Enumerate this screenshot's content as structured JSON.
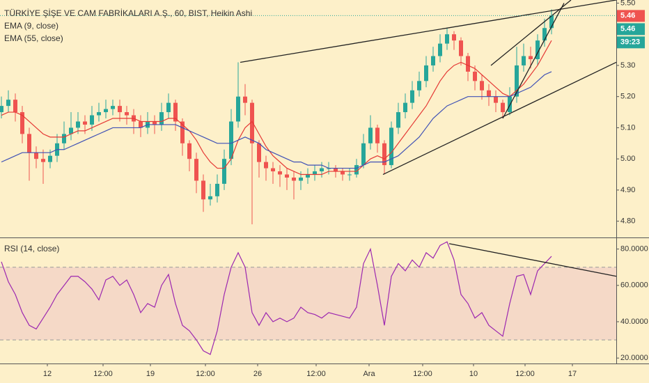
{
  "chart_data": [
    {
      "type": "candlestick",
      "title": "TÜRKİYE ŞİŞE VE CAM FABRİKALARI A.Ş., 60, BIST, Heikin Ashi",
      "up_color": "#26a69a",
      "down_color": "#ef5350",
      "open": [
        5.15,
        5.17,
        5.19,
        5.15,
        5.08,
        5.02,
        5.0,
        4.99,
        5.01,
        5.05,
        5.08,
        5.1,
        5.12,
        5.11,
        5.14,
        5.15,
        5.16,
        5.17,
        5.15,
        5.14,
        5.12,
        5.1,
        5.12,
        5.11,
        5.15,
        5.18,
        5.12,
        5.05,
        5.0,
        4.93,
        4.87,
        4.88,
        4.92,
        5.0,
        5.12,
        5.2,
        5.18,
        5.05,
        4.99,
        4.97,
        4.96,
        4.95,
        4.94,
        4.93,
        4.94,
        4.95,
        4.96,
        4.97,
        4.97,
        4.96,
        4.95,
        4.95,
        4.98,
        5.05,
        5.1,
        5.05,
        4.98,
        5.1,
        5.15,
        5.18,
        5.22,
        5.25,
        5.3,
        5.33,
        5.37,
        5.4,
        5.38,
        5.33,
        5.28,
        5.25,
        5.22,
        5.2,
        5.18,
        5.15,
        5.2,
        5.3,
        5.33,
        5.32,
        5.38,
        5.42
      ],
      "high": [
        5.2,
        5.22,
        5.21,
        5.17,
        5.1,
        5.04,
        5.03,
        5.03,
        5.08,
        5.12,
        5.15,
        5.15,
        5.14,
        5.17,
        5.18,
        5.19,
        5.19,
        5.19,
        5.17,
        5.16,
        5.14,
        5.15,
        5.14,
        5.18,
        5.21,
        5.19,
        5.13,
        5.06,
        5.02,
        4.95,
        4.92,
        4.95,
        5.03,
        5.16,
        5.31,
        5.24,
        5.19,
        5.06,
        5.01,
        4.99,
        4.98,
        4.97,
        4.96,
        4.96,
        4.97,
        4.98,
        4.99,
        4.99,
        4.98,
        4.97,
        4.97,
        5.0,
        5.08,
        5.14,
        5.11,
        5.06,
        5.12,
        5.18,
        5.21,
        5.25,
        5.28,
        5.33,
        5.36,
        5.4,
        5.42,
        5.41,
        5.39,
        5.34,
        5.3,
        5.27,
        5.24,
        5.22,
        5.19,
        5.23,
        5.36,
        5.37,
        5.36,
        5.4,
        5.45,
        5.48
      ],
      "low": [
        5.13,
        5.15,
        5.12,
        5.05,
        4.93,
        4.97,
        4.92,
        4.97,
        4.99,
        5.03,
        5.06,
        5.08,
        5.08,
        5.09,
        5.12,
        5.13,
        5.14,
        5.12,
        5.11,
        5.08,
        5.07,
        5.08,
        5.08,
        5.09,
        5.13,
        5.09,
        5.01,
        4.96,
        4.89,
        4.83,
        4.85,
        4.86,
        4.9,
        4.98,
        5.1,
        5.14,
        4.79,
        4.94,
        4.93,
        4.92,
        4.91,
        4.9,
        4.87,
        4.9,
        4.92,
        4.93,
        4.94,
        4.95,
        4.94,
        4.93,
        4.93,
        4.94,
        4.97,
        5.03,
        5.02,
        4.95,
        4.97,
        5.08,
        5.13,
        5.16,
        5.2,
        5.23,
        5.28,
        5.31,
        5.35,
        5.35,
        5.3,
        5.25,
        5.22,
        5.19,
        5.17,
        5.15,
        5.13,
        5.14,
        5.18,
        5.28,
        5.29,
        5.3,
        5.36,
        5.4
      ],
      "close": [
        5.17,
        5.19,
        5.15,
        5.08,
        5.02,
        5.0,
        4.99,
        5.01,
        5.05,
        5.08,
        5.1,
        5.12,
        5.11,
        5.14,
        5.15,
        5.16,
        5.17,
        5.15,
        5.14,
        5.12,
        5.1,
        5.12,
        5.11,
        5.15,
        5.18,
        5.12,
        5.05,
        5.0,
        4.93,
        4.87,
        4.88,
        4.92,
        5.0,
        5.12,
        5.2,
        5.18,
        5.05,
        4.99,
        4.97,
        4.96,
        4.95,
        4.94,
        4.93,
        4.94,
        4.95,
        4.96,
        4.97,
        4.97,
        4.96,
        4.95,
        4.95,
        4.98,
        5.05,
        5.1,
        5.05,
        4.98,
        5.1,
        5.15,
        5.18,
        5.22,
        5.25,
        5.3,
        5.33,
        5.37,
        5.4,
        5.38,
        5.33,
        5.28,
        5.25,
        5.22,
        5.2,
        5.18,
        5.15,
        5.2,
        5.3,
        5.33,
        5.32,
        5.38,
        5.42,
        5.46
      ],
      "series": [
        {
          "name": "EMA (9, close)",
          "color": "#e53935",
          "values": [
            5.14,
            5.15,
            5.15,
            5.14,
            5.12,
            5.1,
            5.08,
            5.07,
            5.07,
            5.07,
            5.08,
            5.09,
            5.09,
            5.1,
            5.11,
            5.12,
            5.13,
            5.13,
            5.13,
            5.13,
            5.12,
            5.12,
            5.12,
            5.12,
            5.13,
            5.13,
            5.11,
            5.09,
            5.06,
            5.02,
            4.99,
            4.97,
            4.97,
            5.0,
            5.06,
            5.1,
            5.12,
            5.08,
            5.04,
            5.01,
            4.99,
            4.97,
            4.96,
            4.95,
            4.95,
            4.95,
            4.95,
            4.96,
            4.96,
            4.96,
            4.96,
            4.96,
            4.98,
            5.0,
            5.01,
            5.0,
            5.02,
            5.05,
            5.08,
            5.11,
            5.14,
            5.17,
            5.21,
            5.25,
            5.28,
            5.3,
            5.31,
            5.3,
            5.29,
            5.27,
            5.25,
            5.23,
            5.21,
            5.2,
            5.22,
            5.24,
            5.27,
            5.3,
            5.34,
            5.38
          ]
        },
        {
          "name": "EMA (55, close)",
          "color": "#3f51b5",
          "values": [
            4.99,
            5.0,
            5.01,
            5.02,
            5.02,
            5.02,
            5.02,
            5.02,
            5.03,
            5.03,
            5.04,
            5.05,
            5.06,
            5.07,
            5.08,
            5.09,
            5.1,
            5.1,
            5.1,
            5.1,
            5.1,
            5.11,
            5.11,
            5.11,
            5.11,
            5.11,
            5.1,
            5.09,
            5.08,
            5.07,
            5.06,
            5.05,
            5.05,
            5.05,
            5.06,
            5.07,
            5.06,
            5.05,
            5.03,
            5.02,
            5.01,
            5.0,
            4.99,
            4.99,
            4.98,
            4.98,
            4.98,
            4.97,
            4.97,
            4.97,
            4.97,
            4.97,
            4.98,
            4.99,
            4.99,
            4.99,
            5.0,
            5.01,
            5.03,
            5.05,
            5.07,
            5.1,
            5.13,
            5.15,
            5.17,
            5.18,
            5.19,
            5.2,
            5.2,
            5.2,
            5.2,
            5.2,
            5.2,
            5.2,
            5.21,
            5.22,
            5.23,
            5.25,
            5.27,
            5.28
          ]
        }
      ],
      "trendlines": [
        {
          "x": [
            34.3,
            88.3
          ],
          "y": [
            5.31,
            5.51
          ]
        },
        {
          "x": [
            54.8,
            88.3
          ],
          "y": [
            4.95,
            5.31
          ]
        },
        {
          "x": [
            70.3,
            81.8
          ],
          "y": [
            5.3,
            5.51
          ]
        },
        {
          "x": [
            72,
            80.8
          ],
          "y": [
            5.13,
            5.5
          ]
        }
      ],
      "badges": [
        {
          "value": 5.46,
          "color": "#ef5350"
        },
        {
          "value": 5.46,
          "color": "#26a69a"
        }
      ],
      "countdown": "39:23",
      "xlim": [
        -0.2,
        88.3
      ],
      "xticks": [
        {
          "value": 6.6,
          "label": "12"
        },
        {
          "value": 14.6,
          "label": "12:00"
        },
        {
          "value": 21.4,
          "label": "19"
        },
        {
          "value": 29.3,
          "label": "12:00"
        },
        {
          "value": 36.8,
          "label": "26"
        },
        {
          "value": 45.2,
          "label": "12:00"
        },
        {
          "value": 52.8,
          "label": "Ara"
        },
        {
          "value": 60.5,
          "label": "12:00"
        },
        {
          "value": 67.8,
          "label": "10"
        },
        {
          "value": 75.2,
          "label": "12:00"
        },
        {
          "value": 82,
          "label": "17"
        }
      ],
      "ylim": [
        4.75,
        5.51
      ],
      "yticks": [
        {
          "value": 4.8,
          "label": "4.80"
        },
        {
          "value": 4.9,
          "label": "4.90"
        },
        {
          "value": 5.0,
          "label": "5.00"
        },
        {
          "value": 5.1,
          "label": "5.10"
        },
        {
          "value": 5.2,
          "label": "5.20"
        },
        {
          "value": 5.3,
          "label": "5.30"
        },
        {
          "value": 5.5,
          "label": "5.50"
        }
      ]
    },
    {
      "type": "line",
      "series": [
        {
          "name": "RSI (14, close)",
          "color": "#9c27b0",
          "values": [
            73,
            62,
            55,
            45,
            38,
            36,
            42,
            48,
            55,
            60,
            65,
            65,
            62,
            58,
            52,
            63,
            65,
            60,
            63,
            55,
            45,
            50,
            48,
            60,
            66,
            50,
            38,
            35,
            30,
            24,
            22,
            35,
            55,
            70,
            78,
            70,
            45,
            38,
            45,
            40,
            42,
            40,
            42,
            48,
            45,
            44,
            42,
            45,
            44,
            43,
            42,
            48,
            72,
            80,
            60,
            38,
            65,
            72,
            68,
            74,
            70,
            78,
            75,
            82,
            84,
            74,
            55,
            50,
            42,
            45,
            38,
            35,
            32,
            50,
            65,
            66,
            55,
            68,
            72,
            76
          ]
        }
      ],
      "band": [
        30,
        70
      ],
      "band_color": "#f5d9c7",
      "trendlines": [
        {
          "x": [
            64.3,
            88.3
          ],
          "y": [
            83,
            65
          ]
        }
      ],
      "xlim": [
        -0.2,
        88.3
      ],
      "ylim": [
        17,
        86
      ],
      "yticks": [
        {
          "value": 20,
          "label": "20.0000"
        },
        {
          "value": 40,
          "label": "40.0000"
        },
        {
          "value": 60,
          "label": "60.0000"
        },
        {
          "value": 80,
          "label": "80.0000"
        }
      ]
    }
  ]
}
